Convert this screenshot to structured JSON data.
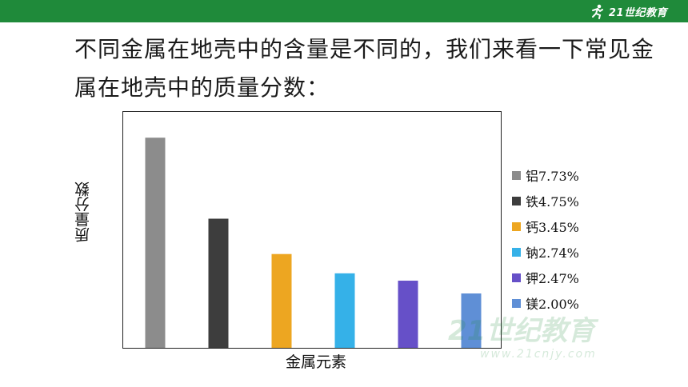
{
  "brand": {
    "name": "21世纪教育",
    "url": "www.21cnjy.com"
  },
  "slide": {
    "line1": "不同金属在地壳中的含量是不同的，我们来看一下常见金",
    "line2": "属在地壳中的质量分数："
  },
  "colors": {
    "top_bar": "#1f8a3a",
    "aluminum": "#8c8c8c",
    "iron": "#3d3d3d",
    "calcium": "#eda621",
    "sodium": "#35b1e8",
    "potassium": "#6650c8",
    "magnesium": "#5f8fd6"
  },
  "chart_data": {
    "type": "bar",
    "title": "",
    "xlabel": "金属元素",
    "ylabel": "质量分数",
    "categories": [
      "铝",
      "铁",
      "钙",
      "钠",
      "钾",
      "镁"
    ],
    "values": [
      7.73,
      4.75,
      3.45,
      2.74,
      2.47,
      2.0
    ],
    "unit": "%",
    "ylim": [
      0,
      8.5
    ],
    "grid": false,
    "legend_position": "right",
    "series": [
      {
        "name": "铝7.73%",
        "value": 7.73,
        "color": "#8c8c8c"
      },
      {
        "name": "铁4.75%",
        "value": 4.75,
        "color": "#3d3d3d"
      },
      {
        "name": "钙3.45%",
        "value": 3.45,
        "color": "#eda621"
      },
      {
        "name": "钠2.74%",
        "value": 2.74,
        "color": "#35b1e8"
      },
      {
        "name": "钾2.47%",
        "value": 2.47,
        "color": "#6650c8"
      },
      {
        "name": "镁2.00%",
        "value": 2.0,
        "color": "#5f8fd6"
      }
    ]
  }
}
